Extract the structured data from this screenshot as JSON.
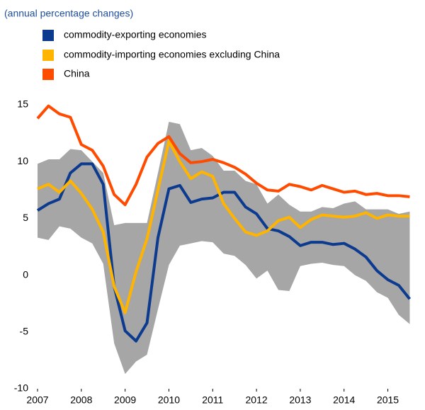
{
  "chart_data": {
    "type": "line",
    "subtitle": "(annual percentage changes)",
    "x": [
      2007,
      2007.25,
      2007.5,
      2007.75,
      2008,
      2008.25,
      2008.5,
      2008.75,
      2009,
      2009.25,
      2009.5,
      2009.75,
      2010,
      2010.25,
      2010.5,
      2010.75,
      2011,
      2011.25,
      2011.5,
      2011.75,
      2012,
      2012.25,
      2012.5,
      2012.75,
      2013,
      2013.25,
      2013.5,
      2013.75,
      2014,
      2014.25,
      2014.5,
      2014.75,
      2015,
      2015.25,
      2015.5
    ],
    "band": {
      "color": "#a6a6a6",
      "upper": [
        9.8,
        10.2,
        10.2,
        11.1,
        11.0,
        10.0,
        9.0,
        4.4,
        4.6,
        4.6,
        4.6,
        9.0,
        13.5,
        13.3,
        11.0,
        11.2,
        10.5,
        9.2,
        9.2,
        8.3,
        8.0,
        6.3,
        7.1,
        6.2,
        5.6,
        5.6,
        6.0,
        5.9,
        6.3,
        6.5,
        5.8,
        5.8,
        5.8,
        5.4,
        5.6
      ],
      "lower": [
        3.3,
        3.1,
        4.3,
        4.1,
        3.3,
        2.8,
        1.0,
        -6.0,
        -8.7,
        -7.6,
        -7.0,
        -3.0,
        0.9,
        2.6,
        2.8,
        3.0,
        2.9,
        1.9,
        1.7,
        0.9,
        -0.3,
        0.4,
        -1.3,
        -1.4,
        0.8,
        1.0,
        1.1,
        0.9,
        0.8,
        0.0,
        -0.5,
        -1.5,
        -2.0,
        -3.5,
        -4.3
      ]
    },
    "series": [
      {
        "name": "commodity-exporting economies",
        "color": "#0b3a8f",
        "values": [
          5.7,
          6.3,
          6.7,
          9.0,
          9.8,
          9.8,
          8.0,
          -1.0,
          -4.9,
          -5.8,
          -4.2,
          3.3,
          7.6,
          7.9,
          6.4,
          6.7,
          6.8,
          7.3,
          7.3,
          6.0,
          5.4,
          4.1,
          3.9,
          3.4,
          2.6,
          2.9,
          2.9,
          2.7,
          2.8,
          2.3,
          1.6,
          0.4,
          -0.4,
          -0.9,
          -2.1
        ]
      },
      {
        "name": "commodity-importing economies excluding China",
        "color": "#ffb400",
        "values": [
          7.6,
          8.0,
          7.3,
          8.3,
          7.2,
          5.8,
          3.8,
          -1.0,
          -3.3,
          0.3,
          3.2,
          7.5,
          11.8,
          10.0,
          8.5,
          9.1,
          8.7,
          6.3,
          5.0,
          3.8,
          3.5,
          3.9,
          4.8,
          5.1,
          4.2,
          4.9,
          5.3,
          5.2,
          5.1,
          5.2,
          5.5,
          5.0,
          5.3,
          5.2,
          5.2
        ]
      },
      {
        "name": "China",
        "color": "#ff4b00",
        "values": [
          13.8,
          14.9,
          14.2,
          13.9,
          11.5,
          11.0,
          9.6,
          7.1,
          6.2,
          8.0,
          10.4,
          11.6,
          12.2,
          10.7,
          9.9,
          10.0,
          10.2,
          9.9,
          9.5,
          8.9,
          8.1,
          7.5,
          7.4,
          8.0,
          7.8,
          7.5,
          7.9,
          7.6,
          7.3,
          7.4,
          7.1,
          7.2,
          7.0,
          7.0,
          6.9
        ]
      }
    ],
    "xlim": [
      2007,
      2015.8
    ],
    "xticks": [
      2007,
      2008,
      2009,
      2010,
      2011,
      2012,
      2013,
      2014,
      2015
    ],
    "ylim": [
      -10,
      15
    ],
    "yticks": [
      -10,
      -5,
      0,
      5,
      10,
      15
    ]
  }
}
